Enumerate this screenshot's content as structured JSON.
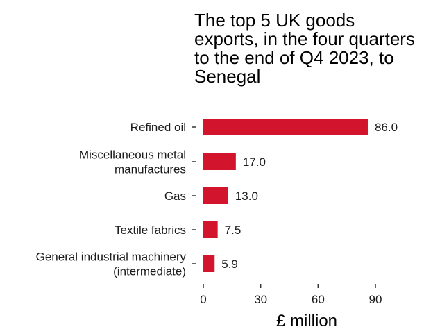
{
  "chart_data": {
    "type": "bar",
    "orientation": "horizontal",
    "title": "The top 5 UK goods exports, in the four quarters to the end of Q4 2023, to Senegal",
    "xlabel": "£ million",
    "ylabel": "",
    "categories": [
      [
        "Refined oil"
      ],
      [
        "Miscellaneous metal",
        "manufactures"
      ],
      [
        "Gas"
      ],
      [
        "Textile fabrics"
      ],
      [
        "General industrial machinery",
        "(intermediate)"
      ]
    ],
    "values": [
      86.0,
      17.0,
      13.0,
      7.5,
      5.9
    ],
    "data_labels": [
      "86.0",
      "17.0",
      "13.0",
      "7.5",
      "5.9"
    ],
    "xticks": [
      0,
      30,
      60,
      90
    ],
    "xlim": [
      0,
      112
    ],
    "bar_color": "#d2142c",
    "grid": false,
    "legend": "none"
  }
}
